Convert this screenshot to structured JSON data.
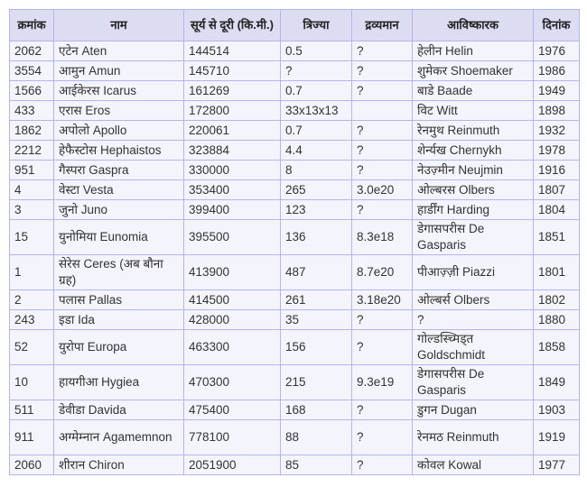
{
  "table": {
    "headers": [
      "क्रमांक",
      "नाम",
      "सूर्य से दूरी (कि.मी.)",
      "त्रिज्या",
      "द्रव्यमान",
      "आविष्कारक",
      "दिनांक"
    ],
    "rows": [
      [
        "2062",
        "एटेन Aten",
        "144514",
        "0.5",
        "?",
        "हेलीन Helin",
        "1976"
      ],
      [
        "3554",
        "आमुन Amun",
        "145710",
        "?",
        "?",
        "शुमेकर Shoemaker",
        "1986"
      ],
      [
        "1566",
        "आईकेरस Icarus",
        "161269",
        "0.7",
        "?",
        "बाडे Baade",
        "1949"
      ],
      [
        "433",
        "एरास Eros",
        "172800",
        "33x13x13",
        "",
        "विट Witt",
        "1898"
      ],
      [
        "1862",
        "अपोलो Apollo",
        "220061",
        "0.7",
        "?",
        "रेनमुथ Reinmuth",
        "1932"
      ],
      [
        "2212",
        "हेफैस्टोस Hephaistos",
        "323884",
        "4.4",
        "?",
        "शेर्न्यख Chernykh",
        "1978"
      ],
      [
        "951",
        "गैस्परा Gaspra",
        "330000",
        "8",
        "?",
        "नेउज़्मीन Neujmin",
        "1916"
      ],
      [
        "4",
        "वेस्टा Vesta",
        "353400",
        "265",
        "3.0e20",
        "ओल्बरस Olbers",
        "1807"
      ],
      [
        "3",
        "जुनो Juno",
        "399400",
        "123",
        "?",
        "हार्डींग Harding",
        "1804"
      ],
      [
        "15",
        "युनोमिया Eunomia",
        "395500",
        "136",
        "8.3e18",
        "डेगासपरीस De Gasparis",
        "1851"
      ],
      [
        "1",
        "सेरेस Ceres (अब बौना ग्रह)",
        "413900",
        "487",
        "8.7e20",
        "पीआज़्ज़ी Piazzi",
        "1801"
      ],
      [
        "2",
        "पलास Pallas",
        "414500",
        "261",
        "3.18e20",
        "ओल्बर्स Olbers",
        "1802"
      ],
      [
        "243",
        "इडा Ida",
        "428000",
        "35",
        "?",
        "?",
        "1880"
      ],
      [
        "52",
        "युरोपा Europa",
        "463300",
        "156",
        "?",
        "गोल्डस्च्मिड्त Goldschmidt",
        "1858"
      ],
      [
        "10",
        "हायगीआ Hygiea",
        "470300",
        "215",
        "9.3e19",
        "डेगासपरीस De Gasparis",
        "1849"
      ],
      [
        "511",
        "डेवीडा Davida",
        "475400",
        "168",
        "?",
        "डुगन Dugan",
        "1903"
      ],
      [
        "911",
        "अग्मेम्नान Agamemnon",
        "778100",
        "88",
        "?",
        "रेनमठ Reinmuth",
        "1919"
      ],
      [
        "2060",
        "शीरान Chiron",
        "2051900",
        "85",
        "?",
        "कोवल Kowal",
        "1977"
      ]
    ]
  }
}
